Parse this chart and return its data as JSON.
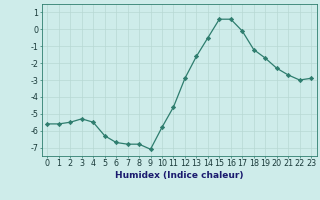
{
  "x": [
    0,
    1,
    2,
    3,
    4,
    5,
    6,
    7,
    8,
    9,
    10,
    11,
    12,
    13,
    14,
    15,
    16,
    17,
    18,
    19,
    20,
    21,
    22,
    23
  ],
  "y": [
    -5.6,
    -5.6,
    -5.5,
    -5.3,
    -5.5,
    -6.3,
    -6.7,
    -6.8,
    -6.8,
    -7.1,
    -5.8,
    -4.6,
    -2.9,
    -1.6,
    -0.5,
    0.6,
    0.6,
    -0.1,
    -1.2,
    -1.7,
    -2.3,
    -2.7,
    -3.0,
    -2.9
  ],
  "xlabel": "Humidex (Indice chaleur)",
  "xlim": [
    -0.5,
    23.5
  ],
  "ylim": [
    -7.5,
    1.5
  ],
  "yticks": [
    1,
    0,
    -1,
    -2,
    -3,
    -4,
    -5,
    -6,
    -7
  ],
  "xticks": [
    0,
    1,
    2,
    3,
    4,
    5,
    6,
    7,
    8,
    9,
    10,
    11,
    12,
    13,
    14,
    15,
    16,
    17,
    18,
    19,
    20,
    21,
    22,
    23
  ],
  "line_color": "#2e7d6e",
  "marker": "D",
  "marker_size": 2.2,
  "bg_color": "#ceecea",
  "grid_color": "#b8d8d4",
  "xlabel_fontsize": 6.5,
  "tick_fontsize": 5.8,
  "xlabel_color": "#1a1a6e",
  "tick_color": "#1a3a3a"
}
